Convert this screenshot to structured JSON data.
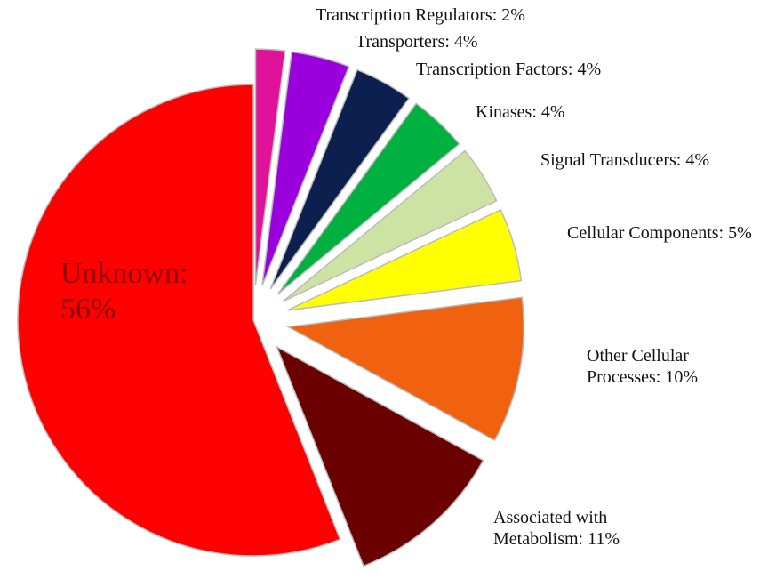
{
  "chart_data": {
    "type": "pie",
    "categories": [
      "Transcription Regulators: 2%",
      "Transporters: 4%",
      "Transcription Factors: 4%",
      "Kinases: 4%",
      "Signal Transducers: 4%",
      "Cellular Components: 5%",
      "Other Cellular Processes: 10%",
      "Associated with Metabolism: 11%",
      "Unknown: 56%"
    ],
    "values": [
      2,
      4,
      4,
      4,
      4,
      5,
      10,
      11,
      56
    ],
    "colors": [
      "#e0129a",
      "#9a00dc",
      "#0c1f4f",
      "#00b140",
      "#cde3a3",
      "#ffff00",
      "#f0620f",
      "#6b0000",
      "#ff0000"
    ]
  }
}
